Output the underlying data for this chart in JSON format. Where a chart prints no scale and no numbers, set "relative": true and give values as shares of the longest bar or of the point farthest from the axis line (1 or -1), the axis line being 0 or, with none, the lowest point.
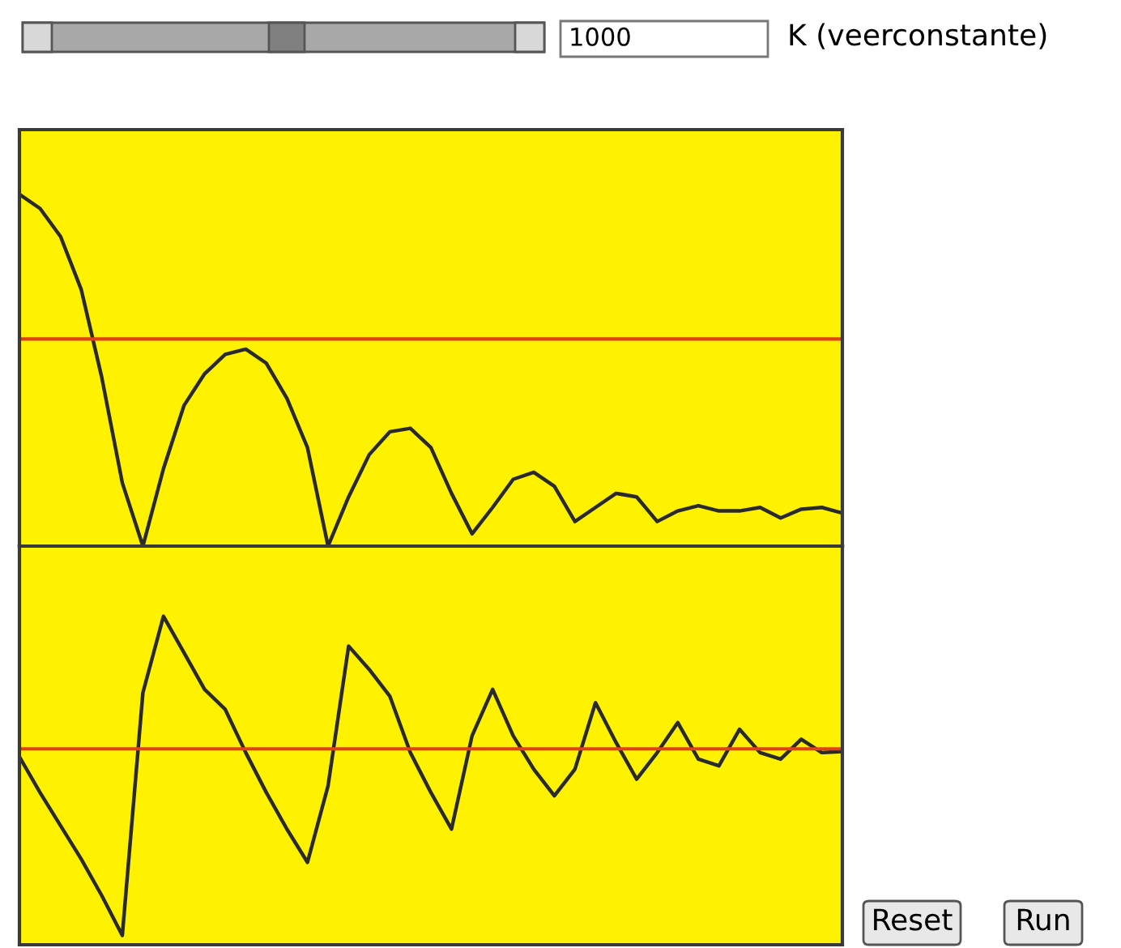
{
  "chart_data": [
    {
      "type": "line",
      "relative": true,
      "annotations": [
        "1000",
        "K (veerconstante)"
      ],
      "ref_lines": [
        {
          "axis": "y",
          "value": 0.589,
          "color": "#e0401a"
        }
      ],
      "categories": [
        null,
        null,
        null,
        null,
        null,
        null,
        null,
        null,
        null,
        null,
        null,
        null,
        null,
        null,
        null,
        null,
        null,
        null,
        null,
        null,
        null,
        null,
        null,
        null,
        null,
        null,
        null,
        null,
        null,
        null,
        null,
        null,
        null,
        null,
        null,
        null,
        null,
        null,
        null,
        null,
        null
      ],
      "series": [
        {
          "color": "#2a2a2a",
          "values": [
            1.0,
            0.96,
            0.88,
            0.73,
            0.48,
            0.18,
            0,
            0.22,
            0.4,
            0.49,
            0.545,
            0.56,
            0.52,
            0.42,
            0.28,
            0,
            0.14,
            0.26,
            0.325,
            0.335,
            0.28,
            0.15,
            0.035,
            0.11,
            0.19,
            0.21,
            0.17,
            0.07,
            0.11,
            0.15,
            0.14,
            0.07,
            0.1,
            0.115,
            0.1,
            0.1,
            0.11,
            0.08,
            0.105,
            0.11,
            0.094
          ]
        }
      ]
    },
    {
      "type": "line",
      "relative": true,
      "annotations": [
        "Reset",
        "Run"
      ],
      "ref_lines": [
        {
          "axis": "y",
          "value": 0,
          "color": "#e0401a"
        }
      ],
      "categories": [
        null,
        null,
        null,
        null,
        null,
        null,
        null,
        null,
        null,
        null,
        null,
        null,
        null,
        null,
        null,
        null,
        null,
        null,
        null,
        null,
        null,
        null,
        null,
        null,
        null,
        null,
        null,
        null,
        null,
        null,
        null,
        null,
        null,
        null,
        null,
        null,
        null,
        null,
        null,
        null,
        null
      ],
      "series": [
        {
          "color": "#2a2a2a",
          "values": [
            -0.043,
            -0.234,
            -0.412,
            -0.59,
            -0.786,
            -1,
            0.301,
            0.711,
            0.515,
            0.319,
            0.212,
            -0.02,
            -0.234,
            -0.43,
            -0.608,
            -0.198,
            0.551,
            0.426,
            0.283,
            -0.02,
            -0.234,
            -0.43,
            0.07,
            0.319,
            0.07,
            -0.109,
            -0.251,
            -0.109,
            0.248,
            0.034,
            -0.162,
            -0.02,
            0.141,
            -0.055,
            -0.091,
            0.105,
            -0.02,
            -0.055,
            0.052,
            -0.02,
            -0.014
          ]
        }
      ]
    }
  ]
}
